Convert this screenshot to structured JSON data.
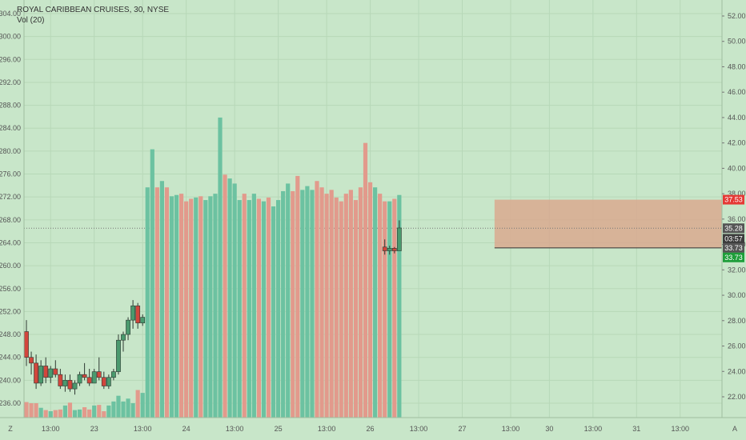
{
  "header": {
    "symbol_line": "ROYAL CARIBBEAN CRUISES, 30, NYSE",
    "indicator_line": "Vol (20)"
  },
  "corner": {
    "left_icon": "Z",
    "right_icon": "A"
  },
  "colors": {
    "background": "#c8e6c9",
    "grid": "#b7d8b8",
    "up": "#4a9a6e",
    "down": "#d2463c",
    "vol_up": "#6cc2a1",
    "vol_down": "#e29a8c",
    "zone_fill": "#d9a98f",
    "badge_red": "#e53935",
    "badge_green": "#1e9e3a",
    "badge_gray": "#555555",
    "badge_dark": "#3c3c3c"
  },
  "price_scale": {
    "badges": [
      {
        "value": "37.53",
        "color": "#e53935",
        "price": 37.53
      },
      {
        "value": "35.28",
        "color": "#555555",
        "price": 35.28
      },
      {
        "value": "03:57",
        "color": "#3c3c3c",
        "price": 34.45
      },
      {
        "value": "33.73",
        "color": "#555555",
        "price": 33.73
      },
      {
        "value": "33.73",
        "color": "#1e9e3a",
        "price": 32.98
      }
    ]
  },
  "chart_data": {
    "type": "candlestick",
    "title": "ROYAL CARIBBEAN CRUISES, 30, NYSE",
    "left_axis": {
      "ticks": [
        "304.00",
        "300.00",
        "296.00",
        "292.00",
        "288.00",
        "284.00",
        "280.00",
        "276.00",
        "272.00",
        "268.00",
        "264.00",
        "260.00",
        "256.00",
        "252.00",
        "248.00",
        "244.00",
        "240.00",
        "236.00"
      ],
      "range": [
        233.8,
        305.4
      ]
    },
    "right_axis": {
      "ticks": [
        "52.00",
        "50.00",
        "48.00",
        "46.00",
        "44.00",
        "42.00",
        "40.00",
        "38.00",
        "36.00",
        "34.00",
        "32.00",
        "30.00",
        "28.00",
        "26.00",
        "24.00",
        "22.00"
      ],
      "range": [
        20.65,
        52.55
      ]
    },
    "x_axis": {
      "labels": [
        "13:00",
        "23",
        "13:00",
        "24",
        "13:00",
        "25",
        "13:00",
        "26",
        "13:00",
        "27",
        "13:00",
        "30",
        "13:00",
        "31",
        "13:00"
      ],
      "label_index": [
        5,
        14,
        24,
        33,
        43,
        52,
        62,
        71,
        81,
        90,
        100,
        108,
        117,
        126,
        135
      ]
    },
    "bar_spacing": 6.05,
    "x0": 33,
    "zone": {
      "top": 37.53,
      "bottom": 33.73,
      "from_index": 97
    },
    "dotted_line": 35.28,
    "grid": true,
    "candles": [
      [
        248.5,
        250.5,
        242.5,
        244.0,
        "L",
        236.2
      ],
      [
        244.0,
        245.0,
        241.0,
        243.0,
        "L",
        236.0
      ],
      [
        243.0,
        244.5,
        238.5,
        239.5,
        "L",
        236.0
      ],
      [
        239.5,
        243.5,
        239.0,
        242.5,
        "L",
        235.2
      ],
      [
        242.5,
        244.0,
        239.5,
        240.5,
        "L",
        234.8
      ],
      [
        240.5,
        242.5,
        239.5,
        242.0,
        "L",
        234.6
      ],
      [
        242.0,
        243.5,
        240.5,
        241.0,
        "L",
        234.8
      ],
      [
        241.0,
        242.0,
        238.5,
        239.0,
        "L",
        234.9
      ],
      [
        239.0,
        241.0,
        238.0,
        240.0,
        "L",
        235.6
      ],
      [
        240.0,
        241.0,
        238.0,
        238.5,
        "L",
        236.1
      ],
      [
        238.5,
        240.0,
        237.5,
        239.5,
        "L",
        234.8
      ],
      [
        239.5,
        241.5,
        239.0,
        241.0,
        "L",
        234.9
      ],
      [
        241.0,
        243.0,
        240.0,
        240.5,
        "L",
        235.3
      ],
      [
        240.5,
        242.0,
        239.0,
        239.5,
        "L",
        234.9
      ],
      [
        239.5,
        242.0,
        239.5,
        241.5,
        "L",
        235.6
      ],
      [
        241.5,
        244.0,
        240.0,
        240.5,
        "L",
        235.7
      ],
      [
        240.5,
        241.5,
        238.5,
        239.0,
        "L",
        234.6
      ],
      [
        239.0,
        241.0,
        238.5,
        240.5,
        "L",
        235.6
      ],
      [
        240.5,
        242.0,
        240.0,
        241.5,
        "L",
        236.3
      ],
      [
        241.5,
        248.0,
        241.0,
        247.0,
        "L",
        237.3
      ],
      [
        247.0,
        248.5,
        245.0,
        248.0,
        "L",
        236.3
      ],
      [
        248.0,
        251.0,
        247.0,
        250.5,
        "L",
        236.8
      ],
      [
        250.5,
        254.0,
        249.0,
        253.0,
        "L",
        236.0
      ],
      [
        253.0,
        253.5,
        249.0,
        250.0,
        "L",
        238.3
      ],
      [
        250.0,
        251.5,
        249.5,
        251.0,
        "L",
        237.8
      ],
      [
        262.0,
        270.0,
        260.0,
        264.5,
        "R",
        38.5
      ],
      [
        264.5,
        275.0,
        264.0,
        274.5,
        "R",
        41.5
      ],
      [
        274.5,
        275.0,
        266.0,
        267.0,
        "R",
        38.5
      ],
      [
        267.0,
        269.0,
        265.5,
        268.5,
        "R",
        39.0
      ],
      [
        268.5,
        270.0,
        266.0,
        267.5,
        "R",
        38.5
      ],
      [
        267.5,
        269.5,
        267.0,
        269.0,
        "R",
        37.8
      ],
      [
        269.0,
        269.5,
        267.5,
        269.0,
        "R",
        37.9
      ],
      [
        269.0,
        269.5,
        265.5,
        266.0,
        "R",
        38.0
      ],
      [
        266.0,
        266.5,
        262.0,
        262.5,
        "R",
        37.4
      ],
      [
        262.5,
        263.5,
        261.0,
        261.5,
        "R",
        37.6
      ],
      [
        261.5,
        263.5,
        260.0,
        263.0,
        "R",
        37.7
      ],
      [
        263.0,
        264.0,
        260.5,
        261.0,
        "R",
        37.8
      ],
      [
        261.0,
        262.5,
        260.0,
        262.0,
        "R",
        37.5
      ],
      [
        262.0,
        264.0,
        260.0,
        263.5,
        "R",
        37.8
      ],
      [
        263.5,
        265.5,
        262.5,
        265.0,
        "R",
        38.0
      ],
      [
        265.0,
        281.5,
        263.0,
        281.0,
        "R",
        44.0
      ],
      [
        281.0,
        282.0,
        266.5,
        268.0,
        "R",
        39.5
      ],
      [
        268.0,
        273.0,
        265.0,
        271.0,
        "R",
        39.2
      ],
      [
        271.0,
        277.0,
        270.0,
        276.0,
        "R",
        38.8
      ],
      [
        276.0,
        278.0,
        274.5,
        277.5,
        "R",
        37.5
      ],
      [
        277.5,
        279.0,
        276.0,
        276.5,
        "R",
        38.0
      ],
      [
        276.5,
        278.5,
        276.0,
        278.0,
        "R",
        37.5
      ],
      [
        278.0,
        284.5,
        277.5,
        283.5,
        "R",
        38.0
      ],
      [
        283.5,
        284.0,
        279.5,
        280.5,
        "R",
        37.6
      ],
      [
        280.5,
        282.5,
        280.0,
        282.0,
        "R",
        37.4
      ],
      [
        282.0,
        283.0,
        280.0,
        281.0,
        "R",
        37.7
      ],
      [
        281.0,
        285.0,
        280.5,
        282.5,
        "R",
        37.0
      ],
      [
        282.5,
        284.0,
        282.0,
        283.0,
        "R",
        37.5
      ],
      [
        283.0,
        287.5,
        281.5,
        285.0,
        "R",
        38.2
      ],
      [
        285.0,
        289.0,
        284.5,
        287.0,
        "R",
        38.8
      ],
      [
        287.0,
        290.0,
        284.0,
        284.5,
        "R",
        38.2
      ],
      [
        284.5,
        285.0,
        277.0,
        277.5,
        "R",
        39.4
      ],
      [
        277.5,
        283.0,
        276.5,
        282.5,
        "R",
        38.3
      ],
      [
        282.5,
        291.0,
        282.0,
        290.0,
        "R",
        38.6
      ],
      [
        290.0,
        297.0,
        289.0,
        296.0,
        "R",
        38.3
      ],
      [
        296.0,
        299.0,
        291.0,
        294.0,
        "R",
        39.0
      ],
      [
        294.0,
        298.0,
        290.0,
        292.0,
        "R",
        38.5
      ],
      [
        292.0,
        295.0,
        290.5,
        291.0,
        "R",
        38.0
      ],
      [
        291.0,
        292.0,
        283.5,
        286.0,
        "R",
        38.3
      ],
      [
        286.0,
        287.5,
        284.0,
        285.5,
        "R",
        37.7
      ],
      [
        285.5,
        287.0,
        283.5,
        284.0,
        "R",
        37.4
      ],
      [
        284.0,
        286.0,
        278.5,
        280.0,
        "R",
        38.0
      ],
      [
        280.0,
        281.0,
        270.5,
        277.0,
        "R",
        38.3
      ],
      [
        277.0,
        277.5,
        273.0,
        276.5,
        "R",
        37.5
      ],
      [
        269.0,
        273.0,
        264.5,
        265.0,
        "R",
        38.5
      ],
      [
        265.0,
        266.5,
        264.0,
        264.5,
        "R",
        42.0
      ],
      [
        264.5,
        265.0,
        261.5,
        262.0,
        "R",
        38.9
      ],
      [
        262.0,
        264.0,
        262.0,
        263.5,
        "R",
        38.5
      ],
      [
        263.5,
        264.5,
        262.0,
        262.5,
        "R",
        38.0
      ],
      [
        33.8,
        34.4,
        33.2,
        33.5,
        "R",
        37.4
      ],
      [
        33.5,
        33.9,
        33.2,
        33.7,
        "R",
        37.4
      ],
      [
        33.7,
        33.8,
        33.3,
        33.5,
        "R",
        37.6
      ],
      [
        33.5,
        35.9,
        33.5,
        35.3,
        "R",
        37.9
      ]
    ]
  }
}
